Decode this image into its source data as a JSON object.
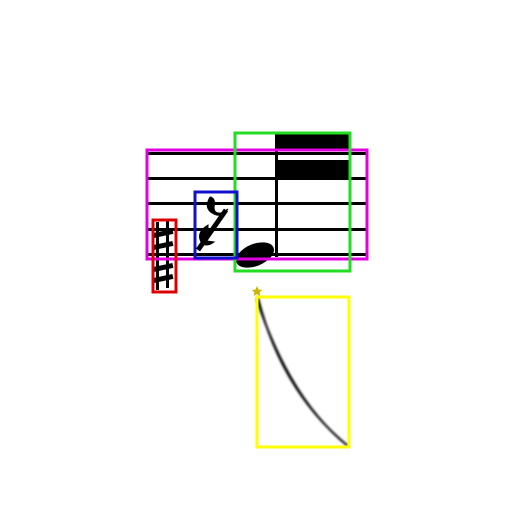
{
  "figure": {
    "background": "#ffffff",
    "ink_color": "#000000",
    "elements": [
      {
        "name": "staff-lines",
        "kind": "staff",
        "line_count": 5
      },
      {
        "name": "sharp-signs",
        "kind": "accidental",
        "symbol": "sharp",
        "count": 2
      },
      {
        "name": "eighth-rest",
        "kind": "rest",
        "symbol": "eighth-rest"
      },
      {
        "name": "beamed-note",
        "kind": "note",
        "symbol": "note-with-beams",
        "beam_count": 2
      },
      {
        "name": "slur-curve",
        "kind": "slur"
      }
    ],
    "annotations": [
      {
        "name": "bbox-staff",
        "target": "staff-lines",
        "color": "#e000e0"
      },
      {
        "name": "bbox-beamed-note",
        "target": "beamed-note",
        "color": "#22dd22"
      },
      {
        "name": "bbox-rest",
        "target": "eighth-rest",
        "color": "#1010cc"
      },
      {
        "name": "bbox-sharps",
        "target": "sharp-signs",
        "color": "#dd0000"
      },
      {
        "name": "bbox-slur",
        "target": "slur-curve",
        "color": "#ffff00"
      }
    ],
    "marker": {
      "name": "star-marker",
      "symbol": "star",
      "color": "#c8b400"
    }
  }
}
